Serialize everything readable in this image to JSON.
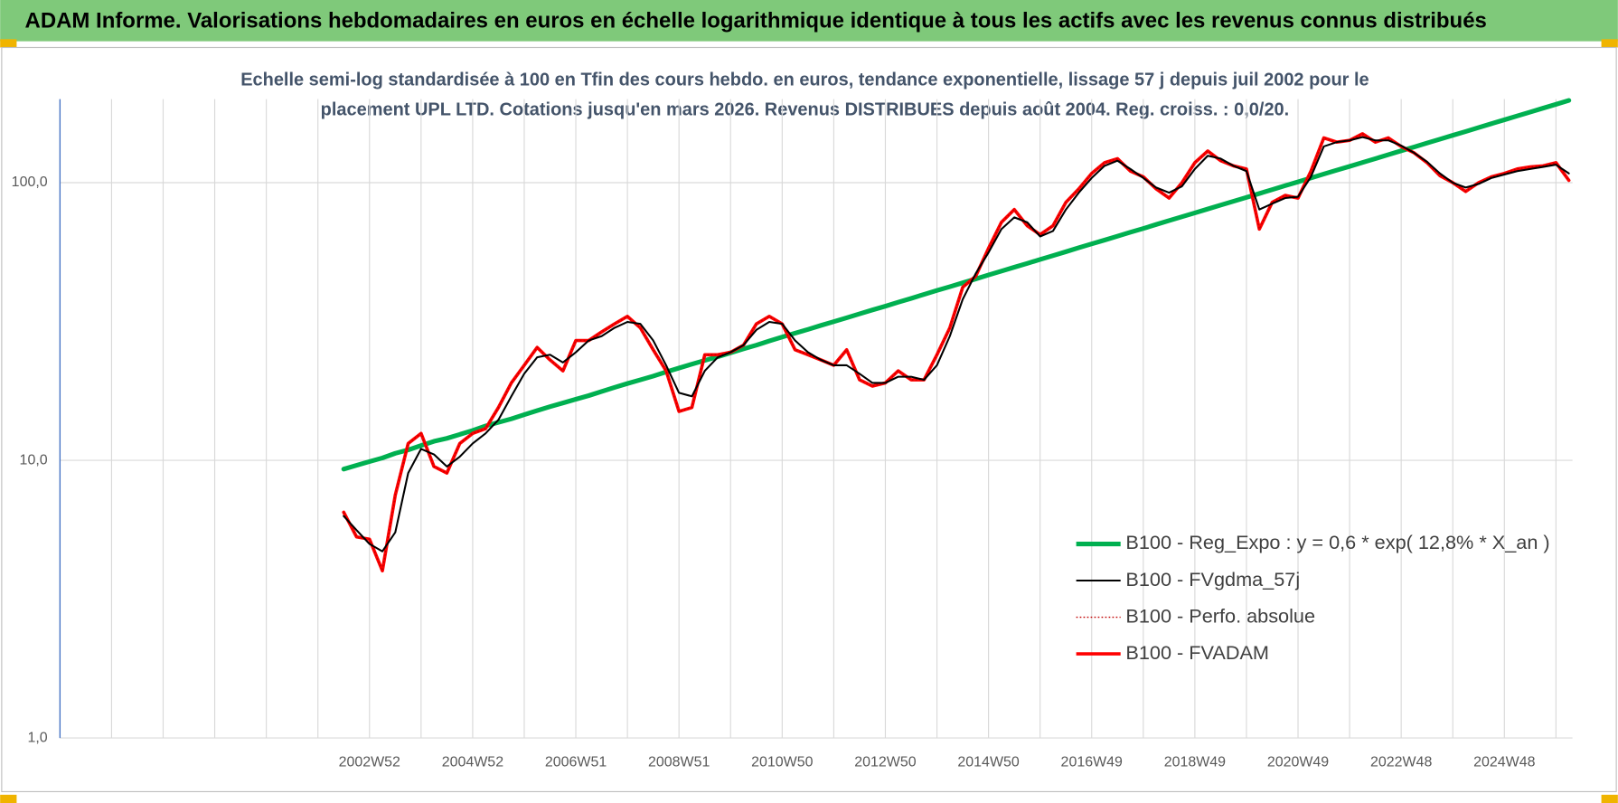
{
  "chart_data": {
    "type": "line",
    "title": "ADAM Informe. Valorisations hebdomadaires en euros en échelle logarithmique identique à tous les actifs avec les revenus connus distribués",
    "subtitle": [
      "Echelle semi-log standardisée à 100 en Tfin des cours hebdo. en euros, tendance exponentielle, lissage 57 j depuis juil 2002 pour le",
      "placement UPL LTD. Cotations jusqu'en mars 2026. Revenus DISTRIBUES depuis août 2004. Reg. croiss. : 0,0/20."
    ],
    "log_scale": true,
    "grid": true,
    "legend": "lower-right",
    "ylim": [
      1,
      200
    ],
    "yticks": [
      {
        "value": 1,
        "label": "1,0"
      },
      {
        "value": 10,
        "label": "10,0"
      },
      {
        "value": 100,
        "label": "100,0"
      }
    ],
    "categories": [
      null,
      null,
      null,
      null,
      null,
      null,
      null,
      null,
      null,
      null,
      null,
      null,
      null,
      null,
      null,
      null,
      null,
      null,
      null,
      null,
      null,
      null,
      null,
      null,
      "2002W52",
      null,
      null,
      null,
      null,
      null,
      null,
      null,
      "2004W52",
      null,
      null,
      null,
      null,
      null,
      null,
      null,
      "2006W51",
      null,
      null,
      null,
      null,
      null,
      null,
      null,
      "2008W51",
      null,
      null,
      null,
      null,
      null,
      null,
      null,
      "2010W50",
      null,
      null,
      null,
      null,
      null,
      null,
      null,
      "2012W50",
      null,
      null,
      null,
      null,
      null,
      null,
      null,
      "2014W50",
      null,
      null,
      null,
      null,
      null,
      null,
      null,
      "2016W49",
      null,
      null,
      null,
      null,
      null,
      null,
      null,
      "2018W49",
      null,
      null,
      null,
      null,
      null,
      null,
      null,
      "2020W49",
      null,
      null,
      null,
      null,
      null,
      null,
      null,
      "2022W48",
      null,
      null,
      null,
      null,
      null,
      null,
      null,
      "2024W48",
      null,
      null,
      null,
      null,
      null
    ],
    "series": [
      {
        "name": "B100 - Reg_Expo : y = 0,6 * exp( 12,8% *  X_an )",
        "color": "#00b050",
        "style": "solid",
        "values": [
          null,
          null,
          null,
          null,
          null,
          null,
          null,
          null,
          null,
          null,
          null,
          null,
          null,
          null,
          null,
          null,
          null,
          null,
          null,
          null,
          null,
          null,
          9.3,
          9.6,
          9.9,
          10.2,
          10.6,
          10.9,
          11.3,
          11.7,
          12,
          12.4,
          12.8,
          13.3,
          13.7,
          14.1,
          14.6,
          15.1,
          15.6,
          16.1,
          16.6,
          17.1,
          17.7,
          18.3,
          18.9,
          19.5,
          20.1,
          20.8,
          21.5,
          22.2,
          22.9,
          23.6,
          24.4,
          25.2,
          26,
          26.9,
          27.8,
          28.7,
          29.6,
          30.6,
          31.6,
          32.6,
          33.7,
          34.8,
          35.9,
          37.1,
          38.3,
          39.6,
          40.9,
          42.2,
          43.6,
          45,
          46.5,
          48,
          49.6,
          51.2,
          52.9,
          54.6,
          56.4,
          58.3,
          60.2,
          62.1,
          64.2,
          66.3,
          68.4,
          70.7,
          73,
          75.4,
          77.8,
          80.4,
          83,
          85.7,
          88.5,
          91.4,
          94.4,
          97.5,
          100.7,
          104,
          107.4,
          110.9,
          114.5,
          118.2,
          122.1,
          126.1,
          130.2,
          134.5,
          138.9,
          143.4,
          148.1,
          152.9,
          157.9,
          163.1,
          168.4,
          173.9,
          179.6,
          185.5,
          191.5,
          197.8
        ]
      },
      {
        "name": "B100 - FVgdma_57j",
        "color": "#000000",
        "style": "solid",
        "values": [
          null,
          null,
          null,
          null,
          null,
          null,
          null,
          null,
          null,
          null,
          null,
          null,
          null,
          null,
          null,
          null,
          null,
          null,
          null,
          null,
          null,
          null,
          6.3,
          5.6,
          5,
          4.7,
          5.5,
          9,
          11,
          10.5,
          9.5,
          10.3,
          11.5,
          12.5,
          14,
          17,
          20.5,
          23.5,
          24,
          22.5,
          24.5,
          27,
          28,
          30,
          31.5,
          31,
          27,
          22,
          17.5,
          17,
          21,
          23.5,
          24.5,
          26,
          29.5,
          31.5,
          31,
          27,
          24.5,
          23,
          22,
          22,
          20.5,
          19,
          19,
          20,
          20,
          19.5,
          22,
          28,
          38,
          47,
          56,
          68,
          75,
          72,
          64,
          67,
          80,
          92,
          104,
          115,
          120,
          112,
          104,
          96,
          92,
          97,
          112,
          125,
          122,
          115,
          110,
          80,
          84,
          88,
          89,
          105,
          135,
          140,
          142,
          146,
          142,
          142,
          136,
          128,
          119,
          108,
          100,
          96,
          99,
          104,
          107,
          110,
          112,
          114,
          116,
          108
        ]
      },
      {
        "name": "B100 - Perfo. absolue",
        "color": "#c00000",
        "style": "dotted",
        "values": [
          null,
          null,
          null,
          null,
          null,
          null,
          null,
          null,
          null,
          null,
          null,
          null,
          null,
          null,
          null,
          null,
          null,
          null,
          null,
          null,
          null,
          null,
          6.5,
          5.3,
          5.2,
          4,
          7.5,
          11.5,
          12.5,
          9.5,
          9,
          11.5,
          12.5,
          13,
          15.5,
          19,
          22,
          25.5,
          23,
          21,
          27,
          27,
          29,
          31,
          33,
          30,
          25,
          21,
          15,
          15.5,
          24,
          24,
          24.5,
          26,
          31,
          33,
          31,
          25,
          24,
          23,
          22,
          25,
          19.5,
          18.5,
          19,
          21,
          19.5,
          19.5,
          24,
          30,
          42,
          46,
          58,
          72,
          80,
          70,
          65,
          70,
          85,
          95,
          108,
          118,
          122,
          110,
          105,
          95,
          88,
          100,
          118,
          130,
          120,
          115,
          112,
          68,
          85,
          90,
          88,
          110,
          145,
          140,
          142,
          150,
          140,
          145,
          135,
          128,
          118,
          106,
          100,
          93,
          100,
          105,
          108,
          112,
          114,
          115,
          118,
          102
        ]
      },
      {
        "name": "B100 - FVADAM",
        "color": "#ff0000",
        "style": "solid",
        "values": [
          null,
          null,
          null,
          null,
          null,
          null,
          null,
          null,
          null,
          null,
          null,
          null,
          null,
          null,
          null,
          null,
          null,
          null,
          null,
          null,
          null,
          null,
          6.5,
          5.3,
          5.2,
          4,
          7.5,
          11.5,
          12.5,
          9.5,
          9,
          11.5,
          12.5,
          13,
          15.5,
          19,
          22,
          25.5,
          23,
          21,
          27,
          27,
          29,
          31,
          33,
          30,
          25,
          21,
          15,
          15.5,
          24,
          24,
          24.5,
          26,
          31,
          33,
          31,
          25,
          24,
          23,
          22,
          25,
          19.5,
          18.5,
          19,
          21,
          19.5,
          19.5,
          24,
          30,
          42,
          46,
          58,
          72,
          80,
          70,
          65,
          70,
          85,
          95,
          108,
          118,
          122,
          110,
          105,
          95,
          88,
          100,
          118,
          130,
          120,
          115,
          112,
          68,
          85,
          90,
          88,
          110,
          145,
          140,
          142,
          150,
          140,
          145,
          135,
          128,
          118,
          106,
          100,
          93,
          100,
          105,
          108,
          112,
          114,
          115,
          118,
          102
        ]
      }
    ]
  }
}
